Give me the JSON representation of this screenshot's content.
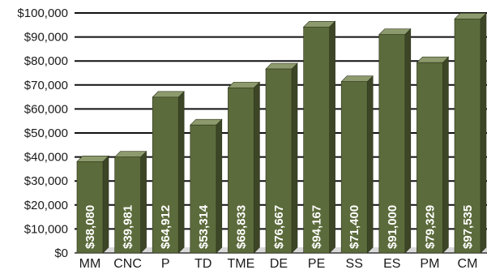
{
  "chart_data": {
    "type": "bar",
    "title": "",
    "xlabel": "",
    "ylabel": "",
    "categories": [
      "MM",
      "CNC",
      "P",
      "TD",
      "TME",
      "DE",
      "PE",
      "SS",
      "ES",
      "PM",
      "CM"
    ],
    "values": [
      38080,
      39981,
      64912,
      53314,
      68833,
      76667,
      94167,
      71400,
      91000,
      79329,
      97535
    ],
    "value_labels": [
      "$38,080",
      "$39,981",
      "$64,912",
      "$53,314",
      "$68,833",
      "$76,667",
      "$94,167",
      "$71,400",
      "$91,000",
      "$79,329",
      "$97,535"
    ],
    "ylim": [
      0,
      100000
    ],
    "yticks": [
      0,
      10000,
      20000,
      30000,
      40000,
      50000,
      60000,
      70000,
      80000,
      90000,
      100000
    ],
    "ytick_labels": [
      "$0",
      "$10,000",
      "$20,000",
      "$30,000",
      "$40,000",
      "$50,000",
      "$60,000",
      "$70,000",
      "$80,000",
      "$90,000",
      "$100,000"
    ],
    "grid": true,
    "legend": "none",
    "colors": {
      "bar_front": "#5c6b3b",
      "bar_top": "#8d9a6d",
      "bar_side": "#3c4626",
      "bar_edge": "#2d351c",
      "grid": "#111111",
      "floor": "#d9d9d9",
      "label": "#ffffff"
    }
  }
}
